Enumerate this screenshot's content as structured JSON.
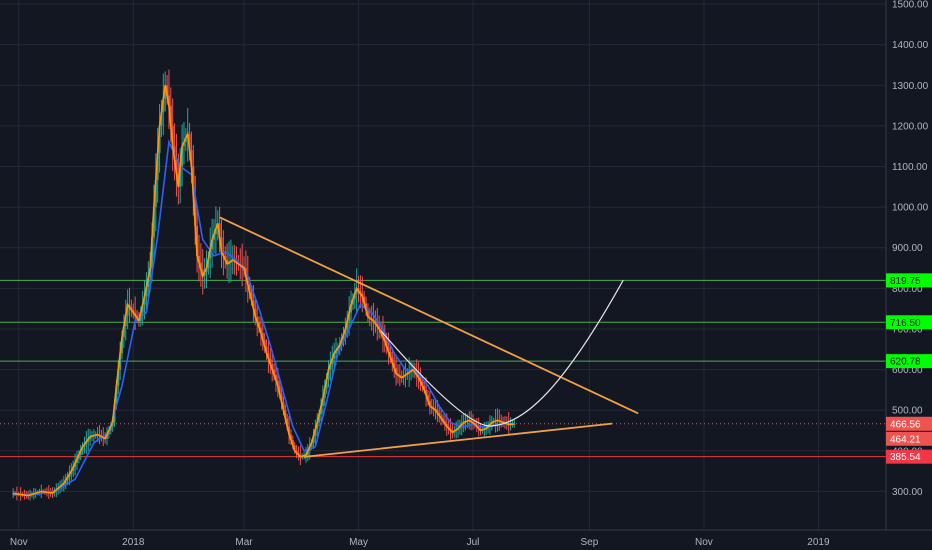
{
  "chart_data": {
    "type": "candlestick",
    "price_axis": {
      "ticks": [
        300,
        400,
        500,
        600,
        700,
        800,
        900,
        1000,
        1100,
        1200,
        1300,
        1400,
        1500
      ],
      "tick_labels": [
        "300.00",
        "400.00",
        "500.00",
        "600.00",
        "700.00",
        "800.00",
        "900.00",
        "1000.00",
        "1100.00",
        "1200.00",
        "1300.00",
        "1400.00",
        "1500.00"
      ],
      "range": [
        205,
        1510
      ]
    },
    "time_axis": {
      "labels": [
        "Nov",
        "2018",
        "Mar",
        "May",
        "Jul",
        "Sep",
        "Nov",
        "2019"
      ],
      "day_index": [
        0,
        61,
        120,
        181,
        242,
        304,
        365,
        426
      ],
      "range_days": [
        -10,
        462
      ]
    },
    "series": [
      {
        "name": "price",
        "points": [
          [
            -3,
            295
          ],
          [
            5,
            290
          ],
          [
            12,
            300
          ],
          [
            18,
            296
          ],
          [
            24,
            320
          ],
          [
            28,
            350
          ],
          [
            34,
            410
          ],
          [
            38,
            435
          ],
          [
            42,
            440
          ],
          [
            46,
            430
          ],
          [
            50,
            470
          ],
          [
            52,
            560
          ],
          [
            55,
            680
          ],
          [
            58,
            760
          ],
          [
            61,
            740
          ],
          [
            64,
            720
          ],
          [
            67,
            780
          ],
          [
            70,
            850
          ],
          [
            72,
            1000
          ],
          [
            75,
            1200
          ],
          [
            78,
            1300
          ],
          [
            80,
            1250
          ],
          [
            82,
            1150
          ],
          [
            85,
            1050
          ],
          [
            87,
            1150
          ],
          [
            90,
            1180
          ],
          [
            92,
            1100
          ],
          [
            95,
            880
          ],
          [
            98,
            830
          ],
          [
            100,
            850
          ],
          [
            103,
            920
          ],
          [
            106,
            960
          ],
          [
            108,
            890
          ],
          [
            111,
            860
          ],
          [
            114,
            870
          ],
          [
            117,
            860
          ],
          [
            120,
            850
          ],
          [
            123,
            790
          ],
          [
            126,
            730
          ],
          [
            129,
            690
          ],
          [
            132,
            640
          ],
          [
            135,
            600
          ],
          [
            138,
            560
          ],
          [
            141,
            500
          ],
          [
            144,
            440
          ],
          [
            147,
            400
          ],
          [
            150,
            385
          ],
          [
            153,
            390
          ],
          [
            156,
            420
          ],
          [
            159,
            470
          ],
          [
            162,
            530
          ],
          [
            165,
            600
          ],
          [
            168,
            640
          ],
          [
            171,
            660
          ],
          [
            174,
            700
          ],
          [
            177,
            760
          ],
          [
            180,
            800
          ],
          [
            183,
            780
          ],
          [
            186,
            730
          ],
          [
            189,
            720
          ],
          [
            192,
            700
          ],
          [
            195,
            670
          ],
          [
            198,
            630
          ],
          [
            201,
            590
          ],
          [
            204,
            580
          ],
          [
            207,
            590
          ],
          [
            210,
            600
          ],
          [
            213,
            580
          ],
          [
            216,
            550
          ],
          [
            219,
            510
          ],
          [
            222,
            500
          ],
          [
            225,
            480
          ],
          [
            228,
            460
          ],
          [
            231,
            445
          ],
          [
            234,
            455
          ],
          [
            237,
            470
          ],
          [
            240,
            475
          ],
          [
            243,
            465
          ],
          [
            246,
            450
          ],
          [
            249,
            455
          ],
          [
            252,
            470
          ],
          [
            255,
            475
          ],
          [
            258,
            470
          ],
          [
            261,
            465
          ],
          [
            264,
            466
          ]
        ]
      },
      {
        "name": "moving-average",
        "points": [
          [
            -3,
            292
          ],
          [
            10,
            293
          ],
          [
            20,
            302
          ],
          [
            30,
            330
          ],
          [
            40,
            420
          ],
          [
            48,
            445
          ],
          [
            55,
            560
          ],
          [
            62,
            720
          ],
          [
            68,
            740
          ],
          [
            74,
            930
          ],
          [
            80,
            1160
          ],
          [
            86,
            1100
          ],
          [
            92,
            1080
          ],
          [
            98,
            920
          ],
          [
            104,
            880
          ],
          [
            110,
            890
          ],
          [
            116,
            870
          ],
          [
            122,
            830
          ],
          [
            128,
            750
          ],
          [
            134,
            660
          ],
          [
            140,
            560
          ],
          [
            146,
            460
          ],
          [
            152,
            400
          ],
          [
            158,
            410
          ],
          [
            164,
            520
          ],
          [
            170,
            640
          ],
          [
            176,
            700
          ],
          [
            182,
            760
          ],
          [
            188,
            740
          ],
          [
            194,
            700
          ],
          [
            200,
            640
          ],
          [
            206,
            600
          ],
          [
            212,
            595
          ],
          [
            218,
            560
          ],
          [
            224,
            510
          ],
          [
            230,
            470
          ],
          [
            236,
            458
          ],
          [
            242,
            465
          ],
          [
            248,
            458
          ],
          [
            254,
            462
          ],
          [
            260,
            468
          ],
          [
            264,
            466
          ]
        ]
      }
    ],
    "horizontal_levels": [
      {
        "value": 819.75,
        "label": "819.75",
        "color": "#4caf50"
      },
      {
        "value": 716.5,
        "label": "716.50",
        "color": "#4caf50"
      },
      {
        "value": 620.78,
        "label": "620.78",
        "color": "#4caf50"
      },
      {
        "value": 385.54,
        "label": "385.54",
        "color": "#e53935"
      }
    ],
    "price_tags": [
      {
        "value": 466.56,
        "label": "466.56",
        "color": "#ef5350"
      },
      {
        "value": 464.21,
        "label": "464.21",
        "color": "#ef5350"
      }
    ],
    "trendlines": [
      {
        "name": "upper-trendline",
        "color": "#f0a045",
        "points": [
          [
            107,
            975
          ],
          [
            330,
            492
          ]
        ]
      },
      {
        "name": "lower-trendline",
        "color": "#f0a045",
        "points": [
          [
            152,
            385
          ],
          [
            316,
            467
          ]
        ]
      }
    ],
    "cup_curve": {
      "name": "cup-curve",
      "color": "#e6e6e6",
      "points": [
        [
          193,
          695
        ],
        [
          240,
          445
        ],
        [
          253,
          462
        ],
        [
          270,
          470
        ],
        [
          290,
          555
        ],
        [
          322,
          820
        ]
      ]
    },
    "colors": {
      "background": "#131722",
      "up": "#26a69a",
      "down": "#ef5350",
      "price_line": "#ff9800",
      "ma_line": "#2962ff"
    }
  }
}
